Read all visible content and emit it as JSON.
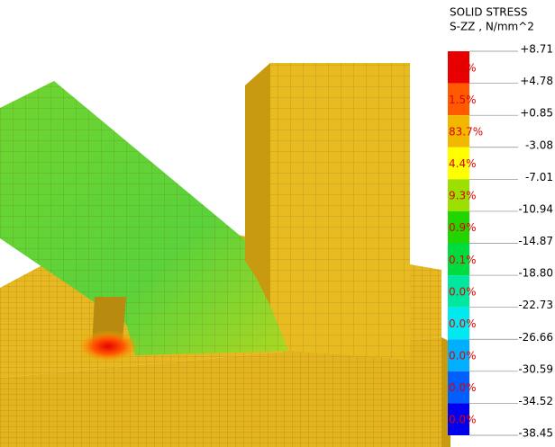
{
  "legend": {
    "title": [
      "SOLID STRESS",
      "S-ZZ , N/mm^2"
    ],
    "bounds": [
      "+8.71",
      "+4.78",
      "+0.85",
      "-3.08",
      "-7.01",
      "-10.94",
      "-14.87",
      "-18.80",
      "-22.73",
      "-26.66",
      "-30.59",
      "-34.52",
      "-38.45"
    ],
    "bands": [
      {
        "percent": "0.1%",
        "color": "#e80000"
      },
      {
        "percent": "1.5%",
        "color": "#ff5a00"
      },
      {
        "percent": "83.7%",
        "color": "#f2b800"
      },
      {
        "percent": "4.4%",
        "color": "#ffff00"
      },
      {
        "percent": "9.3%",
        "color": "#9be000"
      },
      {
        "percent": "0.9%",
        "color": "#22d400"
      },
      {
        "percent": "0.1%",
        "color": "#00dc40"
      },
      {
        "percent": "0.0%",
        "color": "#00e8a0"
      },
      {
        "percent": "0.0%",
        "color": "#00e8f0"
      },
      {
        "percent": "0.0%",
        "color": "#00b0ff"
      },
      {
        "percent": "0.0%",
        "color": "#0060ff"
      },
      {
        "percent": "0.0%",
        "color": "#0000f0"
      }
    ]
  }
}
